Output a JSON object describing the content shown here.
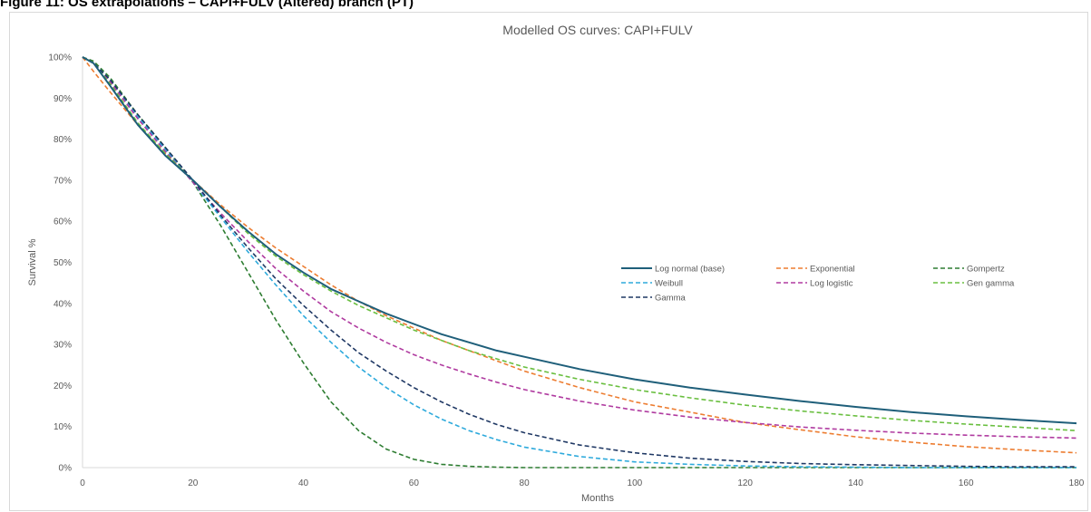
{
  "caption": "Figure 11: OS extrapolations – CAPI+FULV (Altered) branch (PT)",
  "chart_data": {
    "type": "line",
    "title": "Modelled OS curves: CAPI+FULV",
    "xlabel": "Months",
    "ylabel": "Survival %",
    "xlim": [
      0,
      180
    ],
    "ylim": [
      0,
      100
    ],
    "x_ticks": [
      "0",
      "20",
      "40",
      "60",
      "80",
      "100",
      "120",
      "140",
      "160",
      "180"
    ],
    "y_ticks": [
      "0%",
      "10%",
      "20%",
      "30%",
      "40%",
      "50%",
      "60%",
      "70%",
      "80%",
      "90%",
      "100%"
    ],
    "grid": false,
    "legend_position": "right-center",
    "x": [
      0,
      2,
      5,
      10,
      15,
      20,
      25,
      30,
      35,
      40,
      45,
      50,
      55,
      60,
      65,
      70,
      75,
      80,
      90,
      100,
      110,
      120,
      130,
      140,
      150,
      160,
      170,
      180
    ],
    "series": [
      {
        "name": "Log normal (base)",
        "color": "#1f5f7a",
        "dash": "solid",
        "values": [
          100,
          98.5,
          93,
          83.5,
          76,
          70,
          63.5,
          57.5,
          52,
          47.5,
          43.5,
          40.5,
          37.5,
          35,
          32.5,
          30.5,
          28.5,
          27,
          24,
          21.5,
          19.5,
          17.8,
          16.2,
          14.8,
          13.5,
          12.5,
          11.6,
          10.8
        ]
      },
      {
        "name": "Exponential",
        "color": "#ed7d31",
        "dash": "dashed",
        "values": [
          100,
          96.5,
          91.5,
          83.5,
          76.5,
          70,
          64,
          58.5,
          53.5,
          49,
          44.5,
          40.5,
          37,
          34,
          31,
          28.5,
          26,
          23.5,
          19.5,
          16,
          13.5,
          11,
          9.2,
          7.5,
          6.2,
          5.1,
          4.3,
          3.6
        ]
      },
      {
        "name": "Gompertz",
        "color": "#2e7d32",
        "dash": "dashed",
        "values": [
          100,
          99,
          95,
          86,
          78,
          69.5,
          59,
          47.5,
          36,
          25.5,
          16,
          9,
          4.5,
          2,
          0.8,
          0.3,
          0.1,
          0,
          0,
          0,
          0,
          0,
          0,
          0,
          0,
          0,
          0,
          0
        ]
      },
      {
        "name": "Weibull",
        "color": "#2eaadc",
        "dash": "dashed",
        "values": [
          100,
          98.5,
          94.5,
          85.5,
          77.5,
          69.5,
          61,
          52.5,
          44.5,
          37,
          30.5,
          24.5,
          19.5,
          15.3,
          11.8,
          9,
          6.8,
          5,
          2.7,
          1.4,
          0.8,
          0.4,
          0.2,
          0.1,
          0,
          0,
          0,
          0
        ]
      },
      {
        "name": "Log logistic",
        "color": "#b03ba0",
        "dash": "dashed",
        "values": [
          100,
          98.5,
          94,
          85,
          77,
          69.5,
          62,
          55,
          48.5,
          43,
          38,
          34,
          30.5,
          27.5,
          25,
          22.8,
          20.8,
          19,
          16.2,
          14,
          12.3,
          11,
          9.9,
          9.1,
          8.4,
          7.9,
          7.5,
          7.2
        ]
      },
      {
        "name": "Gen gamma",
        "color": "#6abf40",
        "dash": "dashed",
        "values": [
          100,
          98.5,
          93.5,
          84,
          76.5,
          70,
          63.5,
          57,
          51.5,
          47,
          43,
          39.5,
          36.5,
          33.5,
          31,
          28.5,
          26.5,
          24.5,
          21.5,
          19,
          17,
          15.2,
          13.8,
          12.6,
          11.5,
          10.6,
          9.8,
          9
        ]
      },
      {
        "name": "Gamma",
        "color": "#1f3864",
        "dash": "dashed",
        "values": [
          100,
          98.5,
          94.5,
          86,
          78,
          70,
          61.5,
          53.5,
          46,
          39.5,
          33.5,
          28,
          23.5,
          19.5,
          16,
          13,
          10.5,
          8.5,
          5.5,
          3.6,
          2.3,
          1.5,
          1,
          0.7,
          0.5,
          0.3,
          0.2,
          0.2
        ]
      }
    ]
  }
}
